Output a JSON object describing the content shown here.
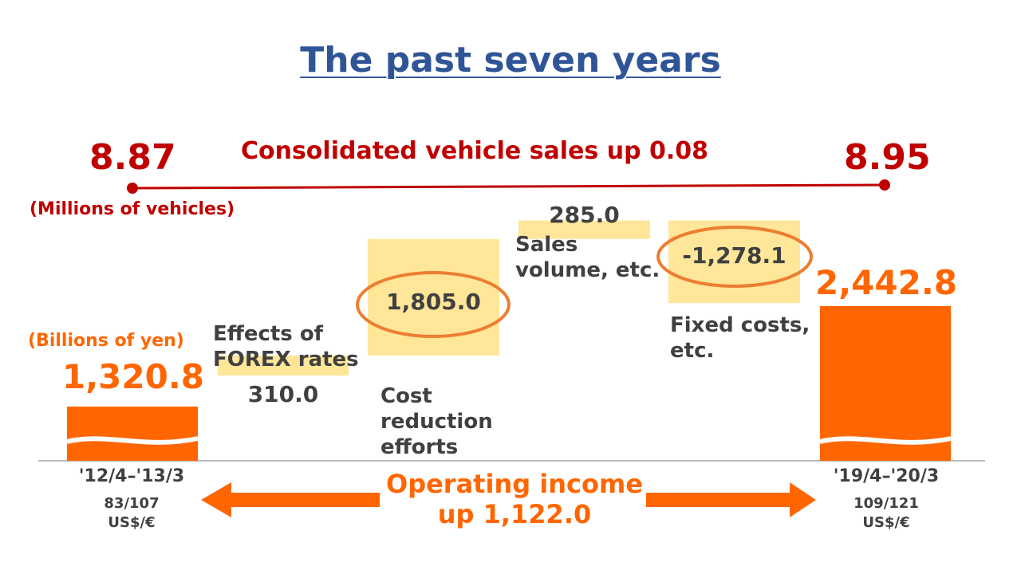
{
  "title": "The past seven years",
  "vehicle_sales": {
    "headline": "Consolidated vehicle sales up 0.08",
    "start_value": "8.87",
    "end_value": "8.95",
    "unit": "(Millions of vehicles)"
  },
  "income_unit": "(Billions of yen)",
  "operating_income": {
    "line1": "Operating income",
    "line2": "up 1,122.0"
  },
  "chart_data": {
    "type": "bar",
    "categories": [
      "'12/4–'13/3",
      "Effects of FOREX rates",
      "Cost reduction efforts",
      "Sales volume, etc.",
      "Fixed costs, etc.",
      "'19/4–'20/3"
    ],
    "values": [
      1320.8,
      310.0,
      1805.0,
      285.0,
      -1278.1,
      2442.8
    ],
    "value_labels": [
      "1,320.8",
      "310.0",
      "1,805.0",
      "285.0",
      "-1,278.1",
      "2,442.8"
    ],
    "label_lines": [
      [
        "'12/4–'13/3"
      ],
      [
        "Effects of",
        "FOREX rates"
      ],
      [
        "Cost",
        "reduction",
        "efforts"
      ],
      [
        "Sales",
        "volume, etc."
      ],
      [
        "Fixed costs,",
        "etc."
      ],
      [
        "'19/4–'20/3"
      ]
    ],
    "exchange_rates": [
      {
        "rate": "83/107",
        "unit": "US$/€"
      },
      {
        "rate": "109/121",
        "unit": "US$/€"
      }
    ],
    "highlighted": [
      "1,805.0",
      "-1,278.1"
    ],
    "colors": {
      "total": "#ff6600",
      "step": "#ffe699",
      "highlight_ring": "#ed7d31"
    }
  }
}
